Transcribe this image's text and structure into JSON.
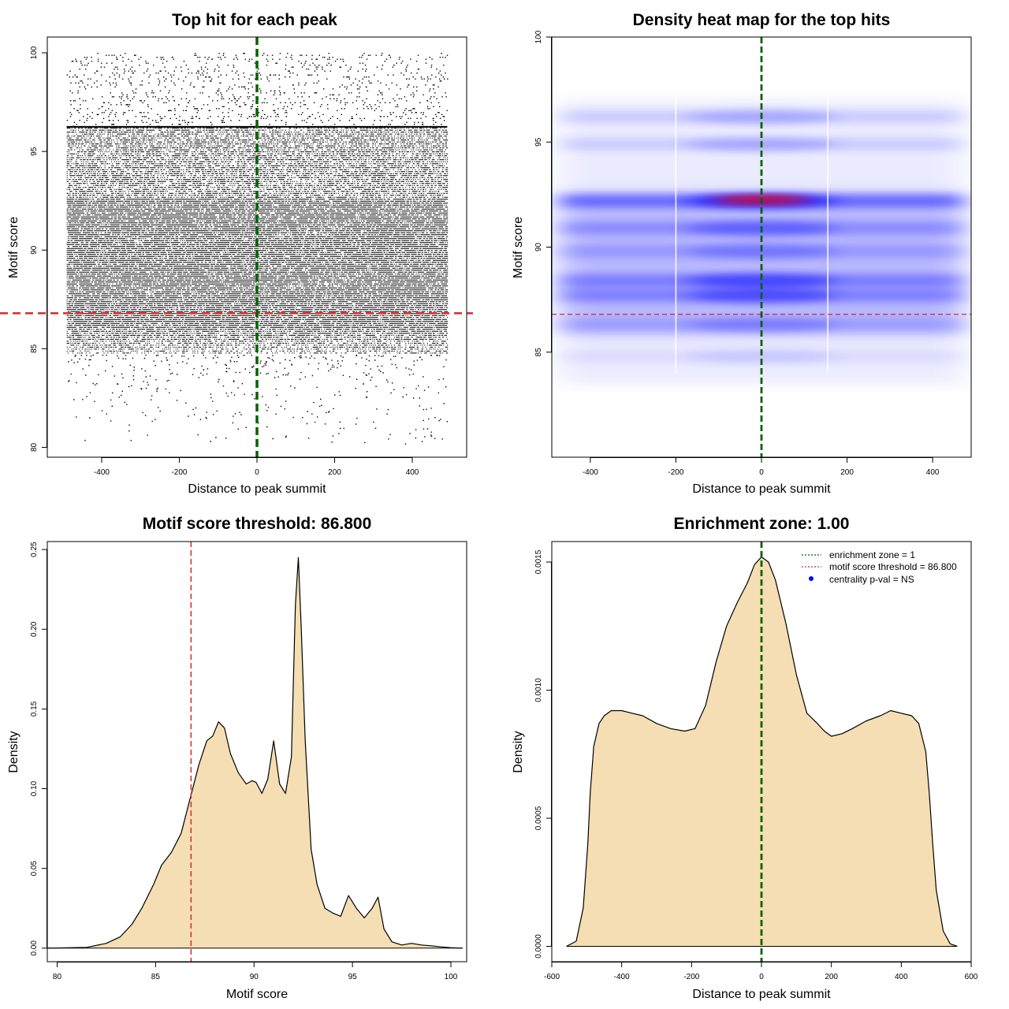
{
  "charts": [
    {
      "id": "scatter",
      "type": "scatter",
      "title": "Top hit for each peak",
      "xlabel": "Distance to peak summit",
      "ylabel": "Motif score",
      "xlim": [
        -540,
        540
      ],
      "ylim": [
        79.5,
        100.8
      ],
      "xticks": [
        -400,
        -200,
        0,
        200,
        400
      ],
      "xtick_labels": [
        "-400",
        "-200",
        "0",
        "200",
        "400"
      ],
      "yticks": [
        80,
        85,
        90,
        95,
        100
      ],
      "ytick_labels": [
        "80",
        "85",
        "90",
        "95",
        "100"
      ],
      "x_range": [
        -490,
        490
      ],
      "dense_score_band": [
        84.8,
        96.2
      ],
      "threshold": 86.8,
      "enrichment_zone_center": 0,
      "line_colors": {
        "threshold": "#d42a2a",
        "center": "#006400",
        "points": "#000000"
      }
    },
    {
      "id": "heatmap",
      "type": "heatmap",
      "title": "Density heat map for the top hits",
      "xlabel": "Distance to peak summit",
      "ylabel": "Motif score",
      "xlim": [
        -490,
        490
      ],
      "ylim": [
        80,
        100
      ],
      "xticks": [
        -400,
        -200,
        0,
        200,
        400
      ],
      "xtick_labels": [
        "-400",
        "-200",
        "0",
        "200",
        "400"
      ],
      "yticks": [
        85,
        90,
        95,
        100
      ],
      "ytick_labels": [
        "85",
        "90",
        "95",
        "100"
      ],
      "score_bands": [
        {
          "score": 92.2,
          "intensity": 1.0
        },
        {
          "score": 90.9,
          "intensity": 0.55
        },
        {
          "score": 89.8,
          "intensity": 0.4
        },
        {
          "score": 88.4,
          "intensity": 0.75
        },
        {
          "score": 87.7,
          "intensity": 0.7
        },
        {
          "score": 86.3,
          "intensity": 0.35
        },
        {
          "score": 94.9,
          "intensity": 0.3
        },
        {
          "score": 96.2,
          "intensity": 0.3
        },
        {
          "score": 84.8,
          "intensity": 0.15
        }
      ],
      "vertical_white_lines": [
        -200,
        155
      ],
      "threshold": 86.8,
      "enrichment_zone_center": 0,
      "colors": {
        "low": "#ffffff",
        "mid": "#0000ff",
        "high": "#ff0000"
      }
    },
    {
      "id": "score_density",
      "type": "area",
      "title": "Motif score threshold: 86.800",
      "xlabel": "Motif score",
      "ylabel": "Density",
      "xlim": [
        79.5,
        100.8
      ],
      "ylim": [
        -0.0085,
        0.255
      ],
      "xticks": [
        80,
        85,
        90,
        95,
        100
      ],
      "xtick_labels": [
        "80",
        "85",
        "90",
        "95",
        "100"
      ],
      "yticks": [
        0,
        0.05,
        0.1,
        0.15,
        0.2,
        0.25
      ],
      "ytick_labels": [
        "0.00",
        "0.05",
        "0.10",
        "0.15",
        "0.20",
        "0.25"
      ],
      "x": [
        79.5,
        81.5,
        82.5,
        83.2,
        83.8,
        84.3,
        84.9,
        85.3,
        85.8,
        86.3,
        86.8,
        87.2,
        87.6,
        87.9,
        88.2,
        88.5,
        88.8,
        89.2,
        89.6,
        89.9,
        90.1,
        90.4,
        90.7,
        91.0,
        91.3,
        91.6,
        91.9,
        92.1,
        92.25,
        92.4,
        92.6,
        92.9,
        93.2,
        93.6,
        94.0,
        94.4,
        94.8,
        95.2,
        95.6,
        96.0,
        96.3,
        96.6,
        97.0,
        97.5,
        98.0,
        98.5,
        99.0,
        99.5,
        100.0,
        100.6
      ],
      "y": [
        0,
        0.0005,
        0.003,
        0.007,
        0.015,
        0.025,
        0.04,
        0.052,
        0.06,
        0.072,
        0.096,
        0.115,
        0.13,
        0.133,
        0.142,
        0.138,
        0.122,
        0.11,
        0.103,
        0.105,
        0.104,
        0.097,
        0.106,
        0.13,
        0.103,
        0.097,
        0.12,
        0.215,
        0.245,
        0.2,
        0.13,
        0.062,
        0.04,
        0.025,
        0.022,
        0.02,
        0.033,
        0.025,
        0.019,
        0.025,
        0.032,
        0.012,
        0.004,
        0.002,
        0.003,
        0.002,
        0.0015,
        0.0008,
        0.0003,
        0
      ],
      "threshold": 86.8,
      "colors": {
        "fill": "#f5deb3",
        "line": "#000000",
        "threshold": "#d42a2a"
      }
    },
    {
      "id": "distance_density",
      "type": "area",
      "title": "Enrichment zone: 1.00",
      "xlabel": "Distance to peak summit",
      "ylabel": "Density",
      "xlim": [
        -600,
        600
      ],
      "ylim": [
        -6e-05,
        0.00158
      ],
      "xticks": [
        -600,
        -400,
        -200,
        0,
        200,
        400,
        600
      ],
      "xtick_labels": [
        "-600",
        "-400",
        "-200",
        "0",
        "200",
        "400",
        "600"
      ],
      "yticks": [
        0,
        0.0005,
        0.001,
        0.0015
      ],
      "ytick_labels": [
        "0.0000",
        "0.0005",
        "0.0010",
        "0.0015"
      ],
      "x": [
        -558,
        -530,
        -510,
        -497,
        -490,
        -480,
        -465,
        -450,
        -430,
        -400,
        -370,
        -340,
        -300,
        -260,
        -220,
        -190,
        -160,
        -130,
        -100,
        -70,
        -40,
        -20,
        0,
        20,
        40,
        70,
        100,
        130,
        160,
        180,
        200,
        230,
        260,
        300,
        340,
        370,
        400,
        430,
        450,
        470,
        480,
        490,
        500,
        520,
        540,
        560
      ],
      "y": [
        0,
        2e-05,
        0.00015,
        0.0004,
        0.0006,
        0.00078,
        0.00087,
        0.0009,
        0.00092,
        0.00092,
        0.00091,
        0.0009,
        0.00087,
        0.00085,
        0.00084,
        0.00085,
        0.00094,
        0.00111,
        0.00125,
        0.00134,
        0.00142,
        0.00149,
        0.00152,
        0.0015,
        0.00143,
        0.00126,
        0.00106,
        0.00091,
        0.00087,
        0.00084,
        0.00082,
        0.00083,
        0.00085,
        0.00088,
        0.0009,
        0.00092,
        0.00091,
        0.0009,
        0.00087,
        0.00076,
        0.0006,
        0.0004,
        0.00022,
        6e-05,
        1e-05,
        0
      ],
      "enrichment_zone_center": 0,
      "colors": {
        "fill": "#f5deb3",
        "line": "#000000",
        "center": "#006400",
        "threshold": "#d42a2a",
        "pval": "#0000ff"
      },
      "legend": [
        {
          "label": "enrichment zone = 1",
          "kind": "dotted-line",
          "color": "#006400"
        },
        {
          "label": "motif score threshold = 86.800",
          "kind": "dotted-line",
          "color": "#d42a2a"
        },
        {
          "label": "centrality p-val = NS",
          "kind": "dot",
          "color": "#0000ff"
        }
      ]
    }
  ]
}
